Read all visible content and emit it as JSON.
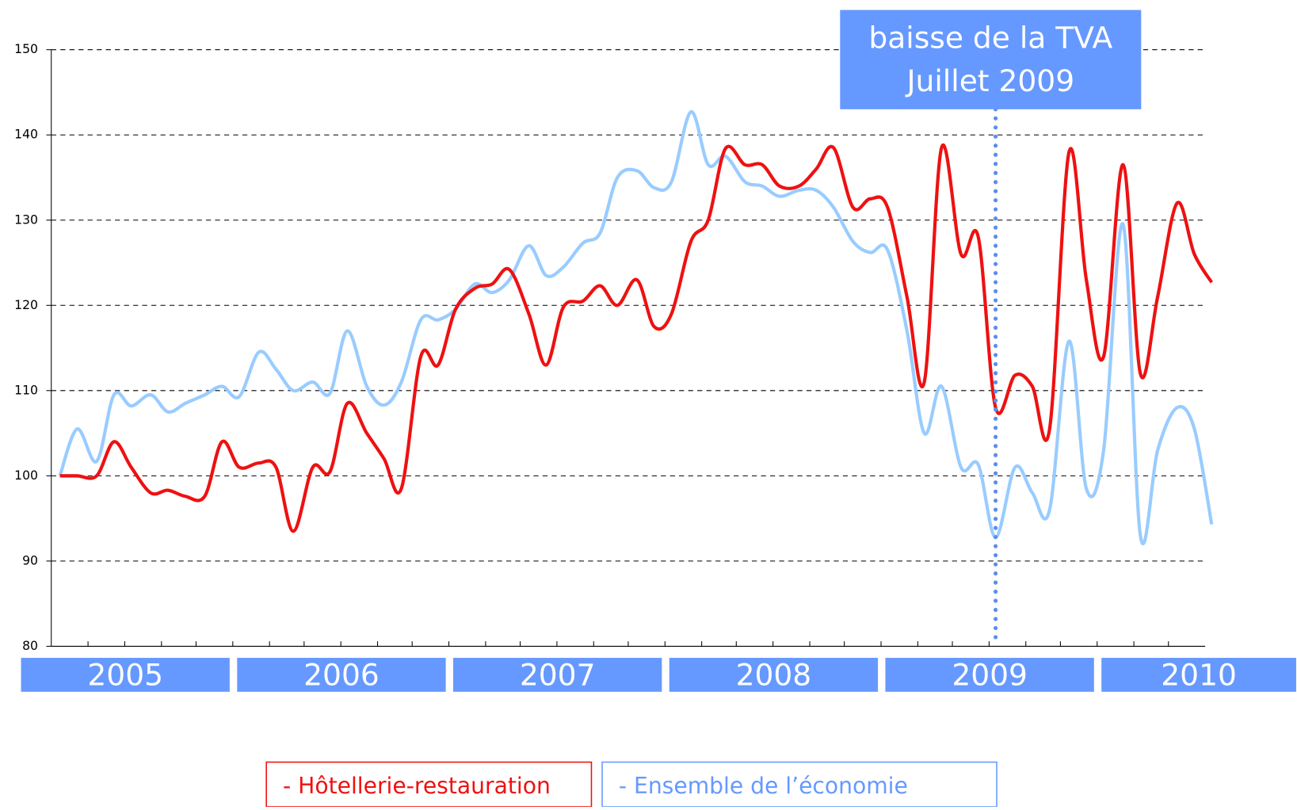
{
  "chart_data": {
    "type": "line",
    "x": [
      2005.18,
      2005.26,
      2005.35,
      2005.43,
      2005.51,
      2005.6,
      2005.68,
      2005.76,
      2005.85,
      2005.93,
      2006.01,
      2006.1,
      2006.18,
      2006.26,
      2006.35,
      2006.43,
      2006.51,
      2006.6,
      2006.68,
      2006.76,
      2006.85,
      2006.93,
      2007.01,
      2007.1,
      2007.18,
      2007.26,
      2007.35,
      2007.43,
      2007.51,
      2007.6,
      2007.68,
      2007.76,
      2007.85,
      2007.93,
      2008.01,
      2008.1,
      2008.18,
      2008.26,
      2008.35,
      2008.43,
      2008.51,
      2008.6,
      2008.68,
      2008.76,
      2008.85,
      2008.93,
      2009.01,
      2009.1,
      2009.18,
      2009.26,
      2009.35,
      2009.43,
      2009.51,
      2009.6,
      2009.68,
      2009.76,
      2009.85,
      2009.93,
      2010.01,
      2010.1,
      2010.18,
      2010.26,
      2010.35,
      2010.43,
      2010.51
    ],
    "series": [
      {
        "name": "- Hôtellerie-restauration",
        "color": "#ee1111",
        "values": [
          100,
          100,
          100,
          104,
          101,
          98,
          98.3,
          97.6,
          97.6,
          104,
          101,
          101.5,
          101,
          93.5,
          101,
          100.5,
          108.5,
          105,
          102,
          98.5,
          114,
          113,
          119.5,
          122,
          122.5,
          124.2,
          119,
          113,
          119.8,
          120.5,
          122.3,
          120,
          123,
          117.5,
          119,
          127.5,
          130,
          138.4,
          136.5,
          136.5,
          134,
          134,
          136,
          138.5,
          131.5,
          132.5,
          131.5,
          121,
          111,
          138.5,
          126,
          128,
          108,
          111.8,
          110.5,
          105.5,
          138,
          123,
          114,
          136.5,
          112,
          121,
          132,
          126,
          122.7
        ]
      },
      {
        "name": "- Ensemble de l’économie",
        "color": "#99ccff",
        "values": [
          100,
          105.5,
          101.7,
          109.5,
          108.2,
          109.5,
          107.5,
          108.5,
          109.5,
          110.5,
          109.3,
          114.5,
          112.5,
          110,
          111,
          109.7,
          117,
          110.5,
          108.3,
          111,
          118.3,
          118.3,
          119.5,
          122.5,
          121.5,
          123,
          127,
          123.5,
          124.5,
          127.3,
          128.5,
          135,
          135.8,
          133.8,
          134.5,
          142.7,
          136.5,
          137.5,
          134.5,
          134,
          132.8,
          133.5,
          133.5,
          131.5,
          127.5,
          126.2,
          126.5,
          117,
          105,
          110.5,
          101,
          101.3,
          92.8,
          101,
          98,
          96,
          115.8,
          98.5,
          103,
          129.5,
          93,
          103,
          108,
          105.5,
          94.3
        ]
      }
    ],
    "xlim": [
      2005.14,
      2010.48
    ],
    "xticks": [
      2005.31,
      2005.48,
      2005.65,
      2005.81,
      2005.98,
      2006.15,
      2006.31,
      2006.48,
      2006.65,
      2006.81,
      2006.98,
      2007.15,
      2007.31,
      2007.48,
      2007.65,
      2007.81,
      2007.98,
      2008.15,
      2008.31,
      2008.48,
      2008.65,
      2008.81,
      2008.98,
      2009.15,
      2009.31,
      2009.48,
      2009.65,
      2009.81,
      2009.98,
      2010.15,
      2010.31
    ],
    "ylim": [
      80,
      150
    ],
    "yticks": [
      80,
      90,
      100,
      110,
      120,
      130,
      140,
      150
    ],
    "grid": true,
    "year_labels": [
      "2005",
      "2006",
      "2007",
      "2008",
      "2009",
      "2010"
    ],
    "annotation": {
      "lines": [
        "baisse de la TVA",
        "Juillet 2009"
      ],
      "x": 2009.51
    },
    "legend": "bottom"
  }
}
